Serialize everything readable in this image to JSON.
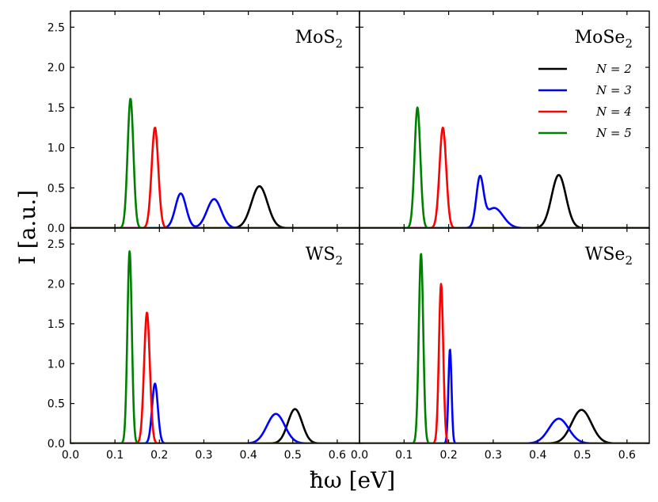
{
  "chart_data": {
    "type": "line",
    "xlabel": "ħω [eV]",
    "ylabel": "I [a.u.]",
    "xlim": [
      0.0,
      0.65
    ],
    "ylim": [
      0.0,
      2.7
    ],
    "xticks": [
      "0.0",
      "0.1",
      "0.2",
      "0.3",
      "0.4",
      "0.5",
      "0.6"
    ],
    "yticks": [
      "0.0",
      "0.5",
      "1.0",
      "1.5",
      "2.0",
      "2.5"
    ],
    "grid": false,
    "legend": {
      "placement": "top-right",
      "panel": 1,
      "entries": [
        {
          "label": "N = 2",
          "color": "#000000"
        },
        {
          "label": "N = 3",
          "color": "#0000ff"
        },
        {
          "label": "N = 4",
          "color": "#ff0000"
        },
        {
          "label": "N = 5",
          "color": "#008000"
        }
      ]
    },
    "panels": [
      {
        "title": "MoS",
        "title_sub": "2",
        "series": [
          {
            "name": "N = 2",
            "color": "#000000",
            "peaks": [
              {
                "x0": 0.425,
                "amp": 0.52,
                "w": 0.018
              }
            ]
          },
          {
            "name": "N = 3",
            "color": "#0000ff",
            "peaks": [
              {
                "x0": 0.248,
                "amp": 0.43,
                "w": 0.012
              },
              {
                "x0": 0.323,
                "amp": 0.36,
                "w": 0.016
              }
            ]
          },
          {
            "name": "N = 4",
            "color": "#ff0000",
            "peaks": [
              {
                "x0": 0.19,
                "amp": 1.25,
                "w": 0.0075
              }
            ]
          },
          {
            "name": "N = 5",
            "color": "#008000",
            "peaks": [
              {
                "x0": 0.135,
                "amp": 1.61,
                "w": 0.0065
              }
            ]
          }
        ]
      },
      {
        "title": "MoSe",
        "title_sub": "2",
        "series": [
          {
            "name": "N = 2",
            "color": "#000000",
            "peaks": [
              {
                "x0": 0.447,
                "amp": 0.66,
                "w": 0.016
              }
            ]
          },
          {
            "name": "N = 3",
            "color": "#0000ff",
            "peaks": [
              {
                "x0": 0.27,
                "amp": 0.58,
                "w": 0.008
              },
              {
                "x0": 0.302,
                "amp": 0.25,
                "w": 0.02
              }
            ]
          },
          {
            "name": "N = 4",
            "color": "#ff0000",
            "peaks": [
              {
                "x0": 0.187,
                "amp": 1.25,
                "w": 0.0075
              }
            ]
          },
          {
            "name": "N = 5",
            "color": "#008000",
            "peaks": [
              {
                "x0": 0.13,
                "amp": 1.5,
                "w": 0.0065
              }
            ]
          }
        ]
      },
      {
        "title": "WS",
        "title_sub": "2",
        "series": [
          {
            "name": "N = 2",
            "color": "#000000",
            "peaks": [
              {
                "x0": 0.505,
                "amp": 0.43,
                "w": 0.016
              }
            ]
          },
          {
            "name": "N = 3",
            "color": "#0000ff",
            "peaks": [
              {
                "x0": 0.19,
                "amp": 0.75,
                "w": 0.0065
              },
              {
                "x0": 0.462,
                "amp": 0.37,
                "w": 0.02
              }
            ]
          },
          {
            "name": "N = 4",
            "color": "#ff0000",
            "peaks": [
              {
                "x0": 0.172,
                "amp": 1.64,
                "w": 0.0065
              }
            ]
          },
          {
            "name": "N = 5",
            "color": "#008000",
            "peaks": [
              {
                "x0": 0.133,
                "amp": 2.41,
                "w": 0.005
              }
            ]
          }
        ]
      },
      {
        "title": "WSe",
        "title_sub": "2",
        "series": [
          {
            "name": "N = 2",
            "color": "#000000",
            "peaks": [
              {
                "x0": 0.498,
                "amp": 0.42,
                "w": 0.022
              }
            ]
          },
          {
            "name": "N = 3",
            "color": "#0000ff",
            "peaks": [
              {
                "x0": 0.203,
                "amp": 1.18,
                "w": 0.0035
              },
              {
                "x0": 0.447,
                "amp": 0.31,
                "w": 0.022
              }
            ]
          },
          {
            "name": "N = 4",
            "color": "#ff0000",
            "peaks": [
              {
                "x0": 0.183,
                "amp": 2.0,
                "w": 0.0048
              }
            ]
          },
          {
            "name": "N = 5",
            "color": "#008000",
            "peaks": [
              {
                "x0": 0.138,
                "amp": 2.38,
                "w": 0.005
              }
            ]
          }
        ]
      }
    ]
  }
}
